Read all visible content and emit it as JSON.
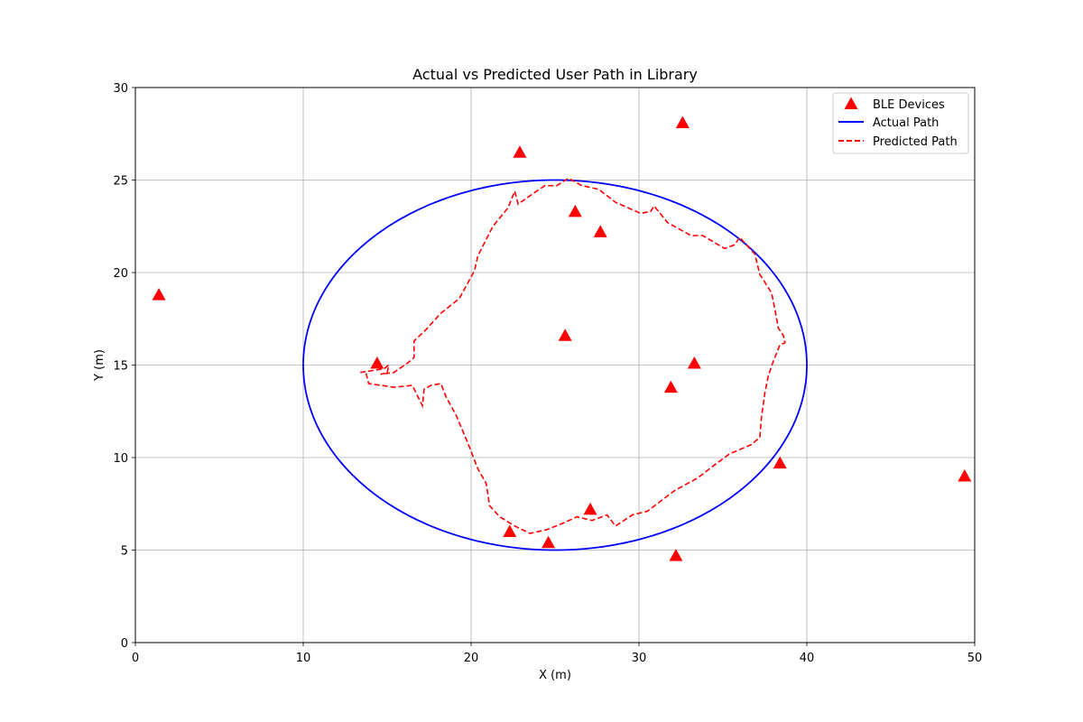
{
  "chart_data": {
    "type": "scatter",
    "title": "Actual vs Predicted User Path in Library",
    "xlabel": "X (m)",
    "ylabel": "Y (m)",
    "xlim": [
      0,
      50
    ],
    "ylim": [
      0,
      30
    ],
    "x_ticks": [
      0,
      10,
      20,
      30,
      40,
      50
    ],
    "y_ticks": [
      0,
      5,
      10,
      15,
      20,
      25,
      30
    ],
    "grid": true,
    "legend_position": "top-right",
    "colors": {
      "ble": "#ff0000",
      "actual": "#0000ff",
      "predicted": "#ff0000",
      "grid": "#b0b0b0"
    },
    "series": [
      {
        "name": "BLE Devices",
        "kind": "marker-triangle",
        "points": [
          [
            1.4,
            18.8
          ],
          [
            14.4,
            15.1
          ],
          [
            22.9,
            26.5
          ],
          [
            26.2,
            23.3
          ],
          [
            27.7,
            22.2
          ],
          [
            32.6,
            28.1
          ],
          [
            25.6,
            16.6
          ],
          [
            31.9,
            13.8
          ],
          [
            33.3,
            15.1
          ],
          [
            38.4,
            9.7
          ],
          [
            49.4,
            9.0
          ],
          [
            27.1,
            7.2
          ],
          [
            22.3,
            6.0
          ],
          [
            24.6,
            5.4
          ],
          [
            32.2,
            4.7
          ]
        ]
      },
      {
        "name": "Actual Path",
        "kind": "line-solid",
        "ellipse": {
          "center": [
            25,
            15
          ],
          "rx": 15,
          "ry": 10
        }
      },
      {
        "name": "Predicted Path",
        "kind": "line-dashed",
        "points": [
          [
            13.4,
            14.6
          ],
          [
            14.8,
            14.8
          ],
          [
            15.1,
            15.0
          ],
          [
            15.0,
            14.6
          ],
          [
            14.6,
            14.5
          ],
          [
            15.4,
            14.6
          ],
          [
            16.2,
            15.1
          ],
          [
            16.6,
            15.4
          ],
          [
            16.6,
            16.3
          ],
          [
            17.3,
            16.9
          ],
          [
            18.2,
            17.8
          ],
          [
            19.3,
            18.6
          ],
          [
            20.2,
            20.1
          ],
          [
            20.4,
            20.9
          ],
          [
            21.3,
            22.5
          ],
          [
            22.2,
            23.5
          ],
          [
            22.6,
            24.4
          ],
          [
            22.8,
            23.7
          ],
          [
            23.9,
            24.4
          ],
          [
            24.4,
            24.7
          ],
          [
            25.1,
            24.7
          ],
          [
            25.8,
            25.1
          ],
          [
            26.6,
            24.7
          ],
          [
            27.6,
            24.5
          ],
          [
            28.6,
            23.8
          ],
          [
            30.1,
            23.2
          ],
          [
            30.7,
            23.3
          ],
          [
            30.9,
            23.6
          ],
          [
            31.7,
            22.7
          ],
          [
            33.1,
            22.0
          ],
          [
            33.8,
            22.0
          ],
          [
            35.1,
            21.3
          ],
          [
            35.7,
            21.5
          ],
          [
            36.0,
            21.9
          ],
          [
            36.9,
            21.0
          ],
          [
            37.2,
            19.9
          ],
          [
            37.9,
            18.9
          ],
          [
            38.1,
            18.0
          ],
          [
            38.3,
            17.0
          ],
          [
            38.6,
            16.6
          ],
          [
            38.7,
            16.2
          ],
          [
            38.4,
            16.1
          ],
          [
            38.0,
            15.2
          ],
          [
            37.7,
            14.4
          ],
          [
            37.5,
            13.5
          ],
          [
            37.3,
            12.2
          ],
          [
            37.2,
            11.1
          ],
          [
            36.7,
            10.7
          ],
          [
            35.4,
            10.2
          ],
          [
            34.5,
            9.6
          ],
          [
            33.5,
            8.9
          ],
          [
            32.1,
            8.2
          ],
          [
            30.5,
            7.1
          ],
          [
            29.6,
            6.9
          ],
          [
            28.6,
            6.3
          ],
          [
            28.1,
            6.9
          ],
          [
            27.2,
            6.6
          ],
          [
            26.3,
            6.8
          ],
          [
            25.6,
            6.5
          ],
          [
            24.5,
            6.1
          ],
          [
            23.5,
            5.9
          ],
          [
            22.6,
            6.3
          ],
          [
            21.7,
            6.8
          ],
          [
            21.1,
            7.4
          ],
          [
            20.9,
            8.6
          ],
          [
            20.4,
            9.4
          ],
          [
            19.8,
            10.8
          ],
          [
            19.1,
            12.3
          ],
          [
            18.5,
            13.3
          ],
          [
            18.2,
            14.0
          ],
          [
            17.6,
            13.9
          ],
          [
            17.2,
            13.7
          ],
          [
            17.1,
            12.8
          ],
          [
            16.5,
            13.9
          ],
          [
            15.4,
            13.8
          ],
          [
            13.9,
            14.0
          ],
          [
            13.7,
            14.7
          ]
        ]
      }
    ]
  }
}
